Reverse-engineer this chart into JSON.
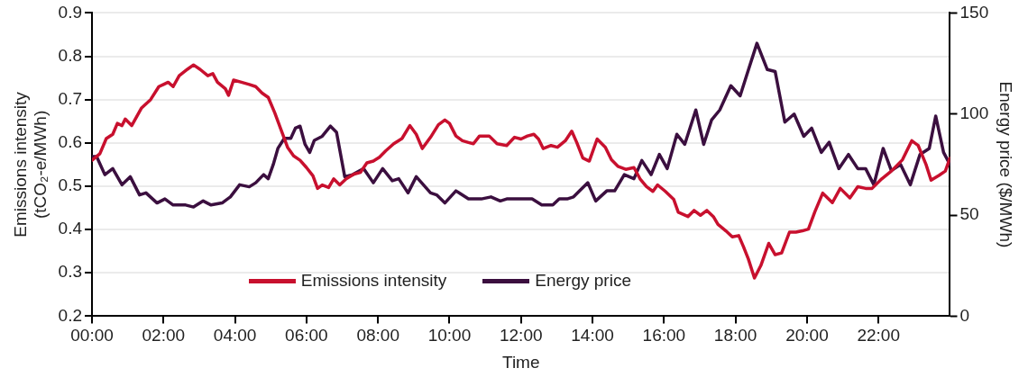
{
  "chart_data": {
    "type": "line",
    "xlabel": "Time",
    "ylabel": "Emissions intensity\n(tCO₂-e/MWh)",
    "y2label": "Energy price ($/MWh)",
    "xlim": [
      0,
      24
    ],
    "xticks": [
      {
        "value": 0,
        "label": "00:00"
      },
      {
        "value": 2,
        "label": "02:00"
      },
      {
        "value": 4,
        "label": "04:00"
      },
      {
        "value": 6,
        "label": "06:00"
      },
      {
        "value": 8,
        "label": "08:00"
      },
      {
        "value": 10,
        "label": "10:00"
      },
      {
        "value": 12,
        "label": "12:00"
      },
      {
        "value": 14,
        "label": "14:00"
      },
      {
        "value": 16,
        "label": "16:00"
      },
      {
        "value": 18,
        "label": "18:00"
      },
      {
        "value": 20,
        "label": "20:00"
      },
      {
        "value": 22,
        "label": "22:00"
      }
    ],
    "ylim": [
      0.2,
      0.9
    ],
    "yticks": [
      0.2,
      0.3,
      0.4,
      0.5,
      0.6,
      0.7,
      0.8,
      0.9
    ],
    "y2lim": [
      0,
      150
    ],
    "y2ticks": [
      0,
      50,
      100,
      150
    ],
    "grid": "y",
    "legend": "bottom",
    "marker": "none",
    "line_style": "solid",
    "series": [
      {
        "name": "Emissions intensity",
        "color": "#c8102e",
        "x": [
          0,
          0.22,
          0.4,
          0.58,
          0.71,
          0.84,
          0.93,
          1.11,
          1.38,
          1.64,
          1.87,
          2.0,
          2.13,
          2.27,
          2.44,
          2.67,
          2.84,
          3.02,
          3.24,
          3.38,
          3.51,
          3.73,
          3.82,
          3.96,
          4.18,
          4.4,
          4.58,
          4.76,
          4.93,
          5.11,
          5.29,
          5.47,
          5.64,
          5.82,
          6.0,
          6.18,
          6.31,
          6.44,
          6.62,
          6.76,
          6.93,
          7.11,
          7.33,
          7.51,
          7.69,
          7.87,
          8.04,
          8.22,
          8.44,
          8.67,
          8.89,
          9.07,
          9.24,
          9.47,
          9.69,
          9.87,
          10.0,
          10.18,
          10.36,
          10.53,
          10.67,
          10.84,
          11.11,
          11.33,
          11.6,
          11.82,
          12.0,
          12.18,
          12.36,
          12.49,
          12.62,
          12.84,
          13.02,
          13.24,
          13.42,
          13.56,
          13.73,
          13.91,
          14.13,
          14.36,
          14.53,
          14.71,
          14.93,
          15.16,
          15.33,
          15.51,
          15.69,
          15.82,
          16.04,
          16.27,
          16.4,
          16.67,
          16.84,
          17.02,
          17.2,
          17.38,
          17.51,
          17.73,
          17.91,
          18.09,
          18.22,
          18.36,
          18.53,
          18.71,
          18.93,
          19.11,
          19.29,
          19.51,
          19.69,
          19.87,
          20.04,
          20.22,
          20.44,
          20.71,
          20.93,
          21.2,
          21.42,
          21.64,
          21.82,
          22.09,
          22.36,
          22.67,
          22.93,
          23.11,
          23.33,
          23.47,
          23.69,
          23.87,
          24.0
        ],
        "values": [
          0.56,
          0.575,
          0.61,
          0.62,
          0.645,
          0.64,
          0.655,
          0.64,
          0.68,
          0.7,
          0.73,
          0.735,
          0.74,
          0.73,
          0.755,
          0.77,
          0.78,
          0.77,
          0.755,
          0.76,
          0.74,
          0.725,
          0.71,
          0.745,
          0.74,
          0.735,
          0.73,
          0.715,
          0.705,
          0.67,
          0.63,
          0.59,
          0.57,
          0.56,
          0.543,
          0.524,
          0.495,
          0.503,
          0.497,
          0.517,
          0.503,
          0.517,
          0.528,
          0.532,
          0.554,
          0.558,
          0.567,
          0.582,
          0.598,
          0.61,
          0.64,
          0.62,
          0.587,
          0.613,
          0.642,
          0.653,
          0.645,
          0.616,
          0.605,
          0.601,
          0.598,
          0.616,
          0.616,
          0.598,
          0.594,
          0.613,
          0.609,
          0.616,
          0.62,
          0.609,
          0.587,
          0.594,
          0.59,
          0.605,
          0.627,
          0.601,
          0.565,
          0.558,
          0.609,
          0.59,
          0.561,
          0.546,
          0.539,
          0.543,
          0.517,
          0.499,
          0.488,
          0.503,
          0.488,
          0.47,
          0.44,
          0.43,
          0.444,
          0.433,
          0.444,
          0.43,
          0.412,
          0.397,
          0.383,
          0.386,
          0.361,
          0.332,
          0.288,
          0.317,
          0.368,
          0.342,
          0.346,
          0.394,
          0.394,
          0.397,
          0.401,
          0.441,
          0.484,
          0.462,
          0.495,
          0.473,
          0.499,
          0.495,
          0.495,
          0.517,
          0.535,
          0.561,
          0.605,
          0.594,
          0.55,
          0.514,
          0.525,
          0.535,
          0.565
        ]
      },
      {
        "name": "Energy price",
        "color": "#3b0f3f",
        "axis": "y2",
        "x": [
          0,
          0.13,
          0.36,
          0.58,
          0.84,
          1.07,
          1.33,
          1.51,
          1.82,
          2.04,
          2.27,
          2.62,
          2.84,
          3.11,
          3.33,
          3.64,
          3.87,
          4.13,
          4.4,
          4.58,
          4.8,
          4.93,
          5.07,
          5.2,
          5.38,
          5.56,
          5.69,
          5.82,
          5.96,
          6.09,
          6.22,
          6.44,
          6.67,
          6.84,
          7.07,
          7.29,
          7.6,
          7.87,
          8.13,
          8.4,
          8.58,
          8.84,
          9.07,
          9.47,
          9.64,
          9.87,
          10.18,
          10.53,
          10.89,
          11.16,
          11.42,
          11.6,
          11.96,
          12.31,
          12.58,
          12.89,
          13.07,
          13.29,
          13.47,
          13.64,
          13.87,
          14.09,
          14.4,
          14.62,
          14.89,
          15.16,
          15.38,
          15.64,
          15.87,
          16.09,
          16.36,
          16.58,
          16.89,
          17.11,
          17.33,
          17.56,
          17.87,
          18.13,
          18.31,
          18.6,
          18.89,
          19.11,
          19.38,
          19.64,
          19.91,
          20.13,
          20.4,
          20.62,
          20.89,
          21.16,
          21.42,
          21.64,
          21.87,
          22.13,
          22.36,
          22.62,
          22.89,
          23.16,
          23.42,
          23.6,
          23.82,
          24.0
        ],
        "values": [
          79,
          79,
          70,
          73,
          65,
          69,
          60,
          61,
          56,
          58,
          55,
          55,
          54,
          57,
          55,
          56,
          59,
          65,
          64,
          66,
          70,
          68,
          75,
          83,
          88,
          88,
          93,
          94,
          85,
          81,
          87,
          89,
          94,
          91,
          69,
          70,
          73,
          66,
          73,
          67,
          68,
          61,
          69,
          61,
          60,
          56,
          62,
          58,
          58,
          59,
          57,
          58,
          58,
          58,
          55,
          55,
          58,
          58,
          59,
          62,
          66,
          57,
          62,
          62,
          70,
          68,
          77,
          70,
          80,
          73,
          90,
          85,
          102,
          85,
          97,
          102,
          114,
          109,
          119,
          135,
          122,
          121,
          96,
          100,
          89,
          93,
          81,
          86,
          73,
          80,
          73,
          73,
          65,
          83,
          72,
          75,
          65,
          80,
          83,
          99,
          81,
          75
        ]
      }
    ]
  }
}
